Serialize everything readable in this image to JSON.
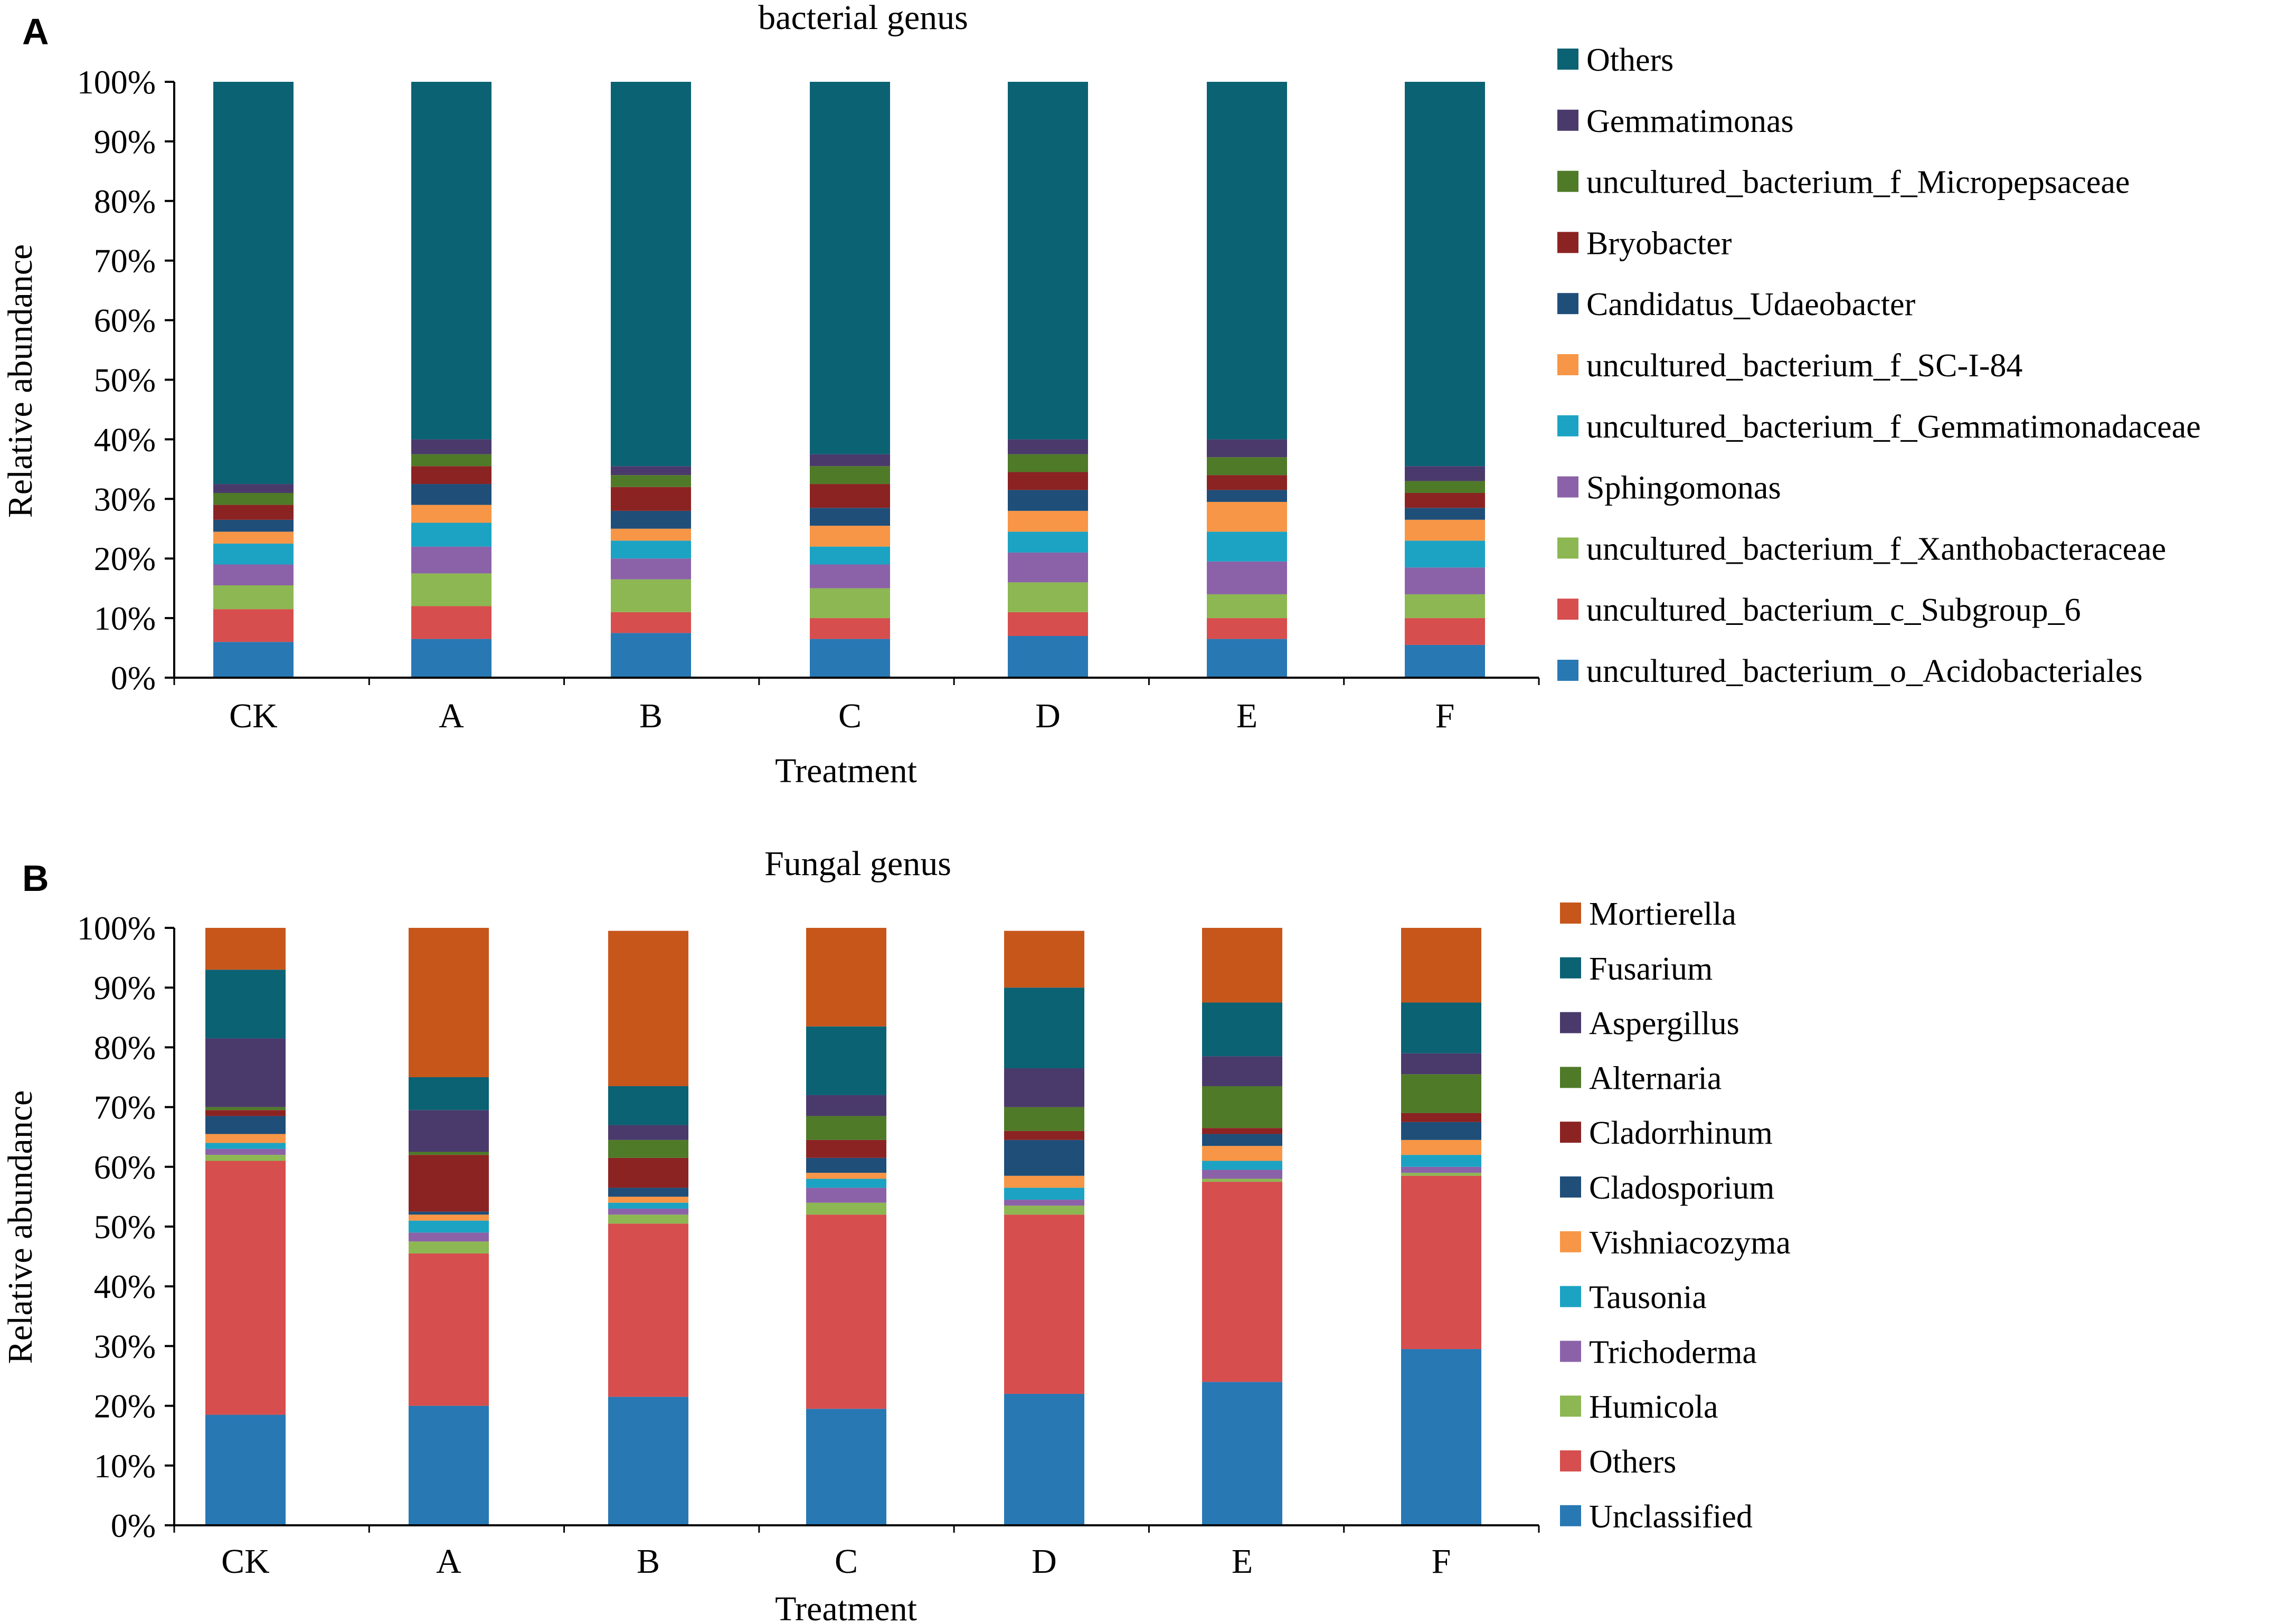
{
  "chart_data": [
    {
      "type": "bar",
      "stacked": true,
      "panel_label": "A",
      "title": "bacterial genus",
      "xlabel": "Treatment",
      "ylabel": "Relative abundance",
      "ylim": [
        0,
        100
      ],
      "yticks": [
        "0%",
        "10%",
        "20%",
        "30%",
        "40%",
        "50%",
        "60%",
        "70%",
        "80%",
        "90%",
        "100%"
      ],
      "categories": [
        "CK",
        "A",
        "B",
        "C",
        "D",
        "E",
        "F"
      ],
      "series": [
        {
          "name": "uncultured_bacterium_o_Acidobacteriales",
          "color": "#2878B4",
          "values": [
            6.0,
            6.5,
            7.5,
            6.5,
            7.0,
            6.5,
            5.5
          ]
        },
        {
          "name": "uncultured_bacterium_c_Subgroup_6",
          "color": "#D64E4E",
          "values": [
            5.5,
            5.5,
            3.5,
            3.5,
            4.0,
            3.5,
            4.5
          ]
        },
        {
          "name": "uncultured_bacterium_f_Xanthobacteraceae",
          "color": "#8DB752",
          "values": [
            4.0,
            5.5,
            5.5,
            5.0,
            5.0,
            4.0,
            4.0
          ]
        },
        {
          "name": "Sphingomonas",
          "color": "#8B62A8",
          "values": [
            3.5,
            4.5,
            3.5,
            4.0,
            5.0,
            5.5,
            4.5
          ]
        },
        {
          "name": "uncultured_bacterium_f_Gemmatimonadaceae",
          "color": "#1CA3C3",
          "values": [
            3.5,
            4.0,
            3.0,
            3.0,
            3.5,
            5.0,
            4.5
          ]
        },
        {
          "name": "uncultured_bacterium_f_SC-I-84",
          "color": "#F79646",
          "values": [
            2.0,
            3.0,
            2.0,
            3.5,
            3.5,
            5.0,
            3.5
          ]
        },
        {
          "name": "Candidatus_Udaeobacter",
          "color": "#1F4E79",
          "values": [
            2.0,
            3.5,
            3.0,
            3.0,
            3.5,
            2.0,
            2.0
          ]
        },
        {
          "name": "Bryobacter",
          "color": "#8B2323",
          "values": [
            2.5,
            3.0,
            4.0,
            4.0,
            3.0,
            2.5,
            2.5
          ]
        },
        {
          "name": "uncultured_bacterium_f_Micropepsaceae",
          "color": "#4F7A28",
          "values": [
            2.0,
            2.0,
            2.0,
            3.0,
            3.0,
            3.0,
            2.0
          ]
        },
        {
          "name": "Gemmatimonas",
          "color": "#4A3A6B",
          "values": [
            1.5,
            2.5,
            1.5,
            2.0,
            2.5,
            3.0,
            2.5
          ]
        },
        {
          "name": "Others",
          "color": "#0B6273",
          "values": [
            67.5,
            60.0,
            64.5,
            62.5,
            60.0,
            60.0,
            64.5
          ]
        }
      ]
    },
    {
      "type": "bar",
      "stacked": true,
      "panel_label": "B",
      "title": "Fungal genus",
      "xlabel": "Treatment",
      "ylabel": "Relative abundance",
      "ylim": [
        0,
        100
      ],
      "yticks": [
        "0%",
        "10%",
        "20%",
        "30%",
        "40%",
        "50%",
        "60%",
        "70%",
        "80%",
        "90%",
        "100%"
      ],
      "categories": [
        "CK",
        "A",
        "B",
        "C",
        "D",
        "E",
        "F"
      ],
      "series": [
        {
          "name": "Unclassified",
          "color": "#2878B4",
          "values": [
            18.5,
            20.0,
            21.5,
            19.5,
            22.0,
            24.0,
            29.5
          ]
        },
        {
          "name": "Others",
          "color": "#D64E4E",
          "values": [
            42.5,
            25.5,
            29.0,
            32.5,
            30.0,
            33.5,
            29.0
          ]
        },
        {
          "name": "Humicola",
          "color": "#8DB752",
          "values": [
            1.0,
            2.0,
            1.5,
            2.0,
            1.5,
            0.5,
            0.5
          ]
        },
        {
          "name": "Trichoderma",
          "color": "#8B62A8",
          "values": [
            1.0,
            1.5,
            1.0,
            2.5,
            1.0,
            1.5,
            1.0
          ]
        },
        {
          "name": "Tausonia",
          "color": "#1CA3C3",
          "values": [
            1.0,
            2.0,
            1.0,
            1.5,
            2.0,
            1.5,
            2.0
          ]
        },
        {
          "name": "Vishniacozyma",
          "color": "#F79646",
          "values": [
            1.5,
            1.0,
            1.0,
            1.0,
            2.0,
            2.5,
            2.5
          ]
        },
        {
          "name": "Cladosporium",
          "color": "#1F4E79",
          "values": [
            3.0,
            0.5,
            1.5,
            2.5,
            6.0,
            2.0,
            3.0
          ]
        },
        {
          "name": "Cladorrhinum",
          "color": "#8B2323",
          "values": [
            1.0,
            9.5,
            5.0,
            3.0,
            1.5,
            1.0,
            1.5
          ]
        },
        {
          "name": "Alternaria",
          "color": "#4F7A28",
          "values": [
            0.5,
            0.5,
            3.0,
            4.0,
            4.0,
            7.0,
            6.5
          ]
        },
        {
          "name": "Aspergillus",
          "color": "#4A3A6B",
          "values": [
            11.5,
            7.0,
            2.5,
            3.5,
            6.5,
            5.0,
            3.5
          ]
        },
        {
          "name": "Fusarium",
          "color": "#0B6273",
          "values": [
            11.5,
            5.5,
            6.5,
            11.5,
            13.5,
            9.0,
            8.5
          ]
        },
        {
          "name": "Mortierella",
          "color": "#C7561B",
          "values": [
            7.0,
            25.0,
            26.0,
            16.5,
            9.5,
            12.5,
            12.5
          ]
        }
      ]
    }
  ]
}
